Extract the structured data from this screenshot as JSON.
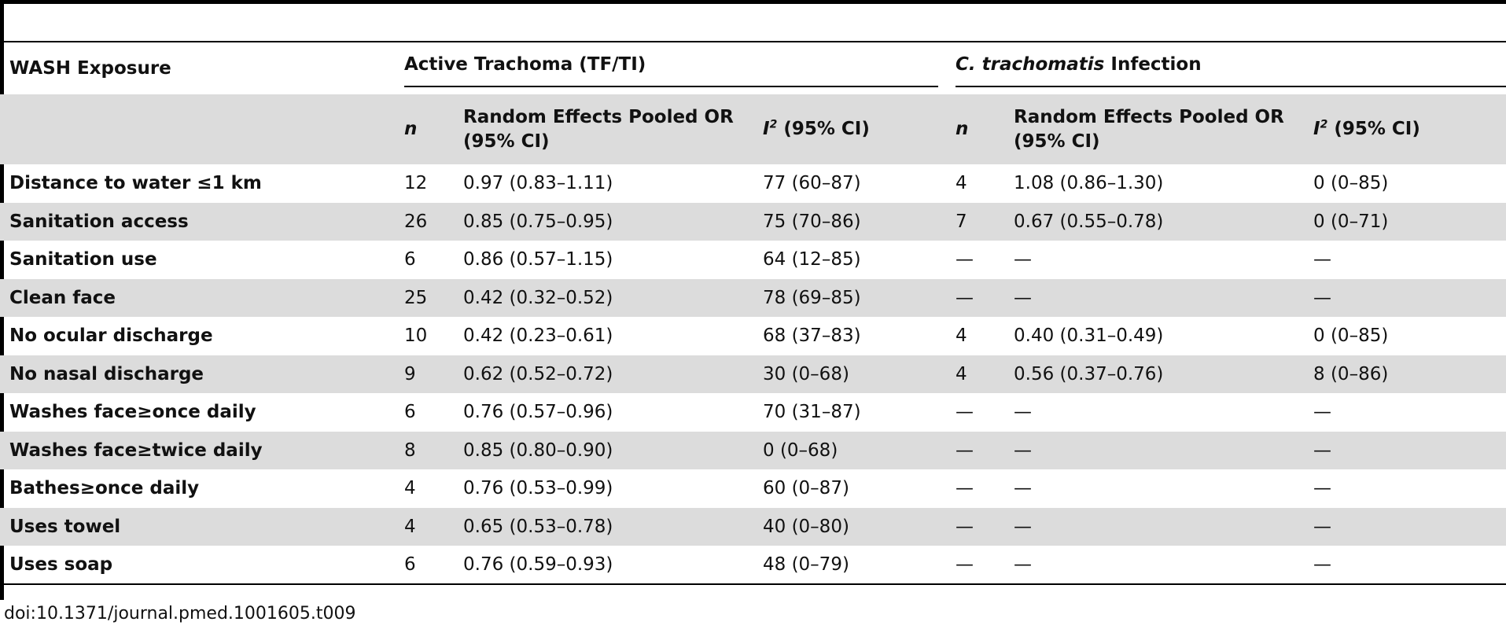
{
  "table": {
    "header": {
      "exposure_label": "WASH Exposure",
      "group1": "Active Trachoma (TF/TI)",
      "group2_italic": "C. trachomatis",
      "group2_rest": " Infection",
      "n_label": "n",
      "or_label_line1": "Random Effects Pooled OR",
      "or_label_line2": "(95% CI)",
      "i2_letter": "I",
      "i2_sup": "2",
      "i2_rest": " (95% CI)"
    },
    "rows": [
      {
        "exposure": "Distance to water ≤1 km",
        "n1": "12",
        "or1": "0.97 (0.83–1.11)",
        "i21": "77 (60–87)",
        "n2": "4",
        "or2": "1.08 (0.86–1.30)",
        "i22": "0 (0–85)"
      },
      {
        "exposure": "Sanitation access",
        "n1": "26",
        "or1": "0.85 (0.75–0.95)",
        "i21": "75 (70–86)",
        "n2": "7",
        "or2": "0.67 (0.55–0.78)",
        "i22": "0 (0–71)"
      },
      {
        "exposure": "Sanitation use",
        "n1": "6",
        "or1": "0.86 (0.57–1.15)",
        "i21": "64 (12–85)",
        "n2": "—",
        "or2": "—",
        "i22": "—"
      },
      {
        "exposure": "Clean face",
        "n1": "25",
        "or1": "0.42 (0.32–0.52)",
        "i21": "78 (69–85)",
        "n2": "—",
        "or2": "—",
        "i22": "—"
      },
      {
        "exposure": "No ocular discharge",
        "n1": "10",
        "or1": "0.42 (0.23–0.61)",
        "i21": "68 (37–83)",
        "n2": "4",
        "or2": "0.40 (0.31–0.49)",
        "i22": "0 (0–85)"
      },
      {
        "exposure": "No nasal discharge",
        "n1": "9",
        "or1": "0.62 (0.52–0.72)",
        "i21": "30 (0–68)",
        "n2": "4",
        "or2": "0.56 (0.37–0.76)",
        "i22": "8 (0–86)"
      },
      {
        "exposure": "Washes face≥once daily",
        "n1": "6",
        "or1": "0.76 (0.57–0.96)",
        "i21": "70 (31–87)",
        "n2": "—",
        "or2": "—",
        "i22": "—"
      },
      {
        "exposure": "Washes face≥twice daily",
        "n1": "8",
        "or1": "0.85 (0.80–0.90)",
        "i21": "0 (0–68)",
        "n2": "—",
        "or2": "—",
        "i22": "—"
      },
      {
        "exposure": "Bathes≥once daily",
        "n1": "4",
        "or1": "0.76 (0.53–0.99)",
        "i21": "60 (0–87)",
        "n2": "—",
        "or2": "—",
        "i22": "—"
      },
      {
        "exposure": "Uses towel",
        "n1": "4",
        "or1": "0.65 (0.53–0.78)",
        "i21": "40 (0–80)",
        "n2": "—",
        "or2": "—",
        "i22": "—"
      },
      {
        "exposure": "Uses soap",
        "n1": "6",
        "or1": "0.76 (0.59–0.93)",
        "i21": "48 (0–79)",
        "n2": "—",
        "or2": "—",
        "i22": "—"
      }
    ]
  },
  "footer": {
    "doi": "doi:10.1371/journal.pmed.1001605.t009"
  }
}
